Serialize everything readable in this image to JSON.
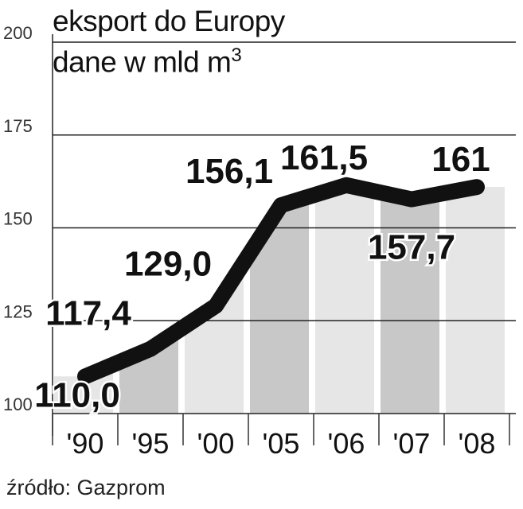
{
  "chart_data": {
    "type": "line",
    "title": "eksport do Europy",
    "subtitle": "dane w mld m",
    "subtitle_sup": "3",
    "categories": [
      "'90",
      "'95",
      "'00",
      "'05",
      "'06",
      "'07",
      "'08"
    ],
    "values": [
      110.0,
      117.4,
      129.0,
      156.1,
      161.5,
      157.7,
      161
    ],
    "value_labels": [
      "110,0",
      "117,4",
      "129,0",
      "156,1",
      "161,5",
      "157,7",
      "161"
    ],
    "yticks": [
      "100",
      "125",
      "150",
      "175",
      "200"
    ],
    "ylim": [
      100,
      200
    ],
    "grid": true,
    "line_color": "#111111",
    "area_colors": [
      "#e6e6e6",
      "#c8c8c8"
    ]
  },
  "source": "źródło: Gazprom"
}
